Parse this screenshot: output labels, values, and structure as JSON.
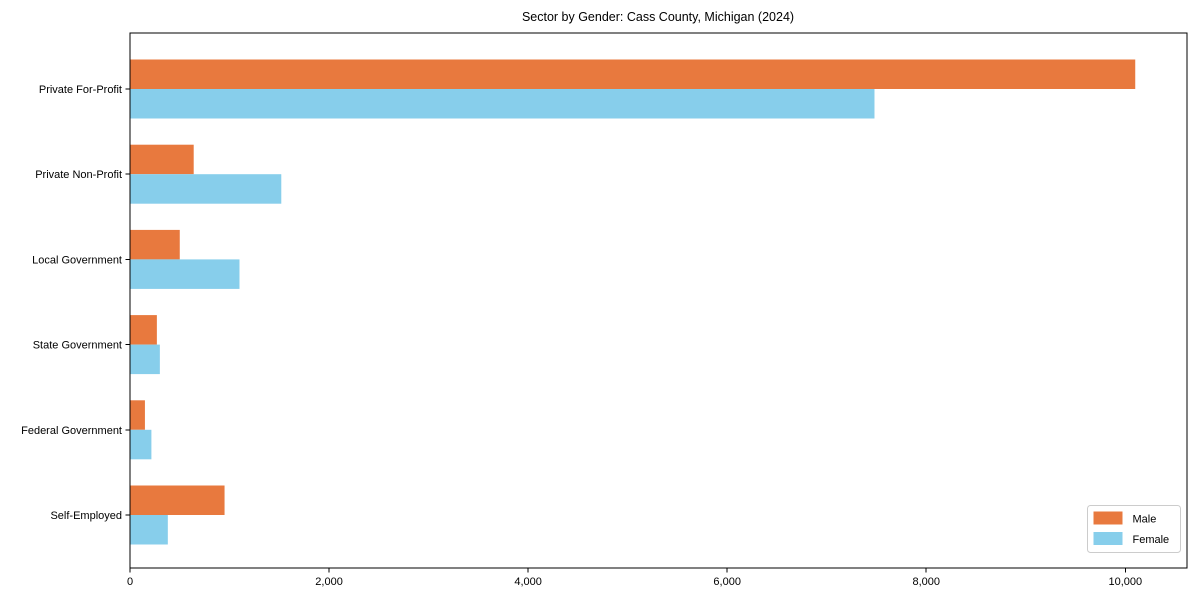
{
  "chart_data": {
    "type": "bar",
    "orientation": "horizontal",
    "title": "Sector by Gender: Cass County, Michigan (2024)",
    "categories": [
      "Private For-Profit",
      "Private Non-Profit",
      "Local Government",
      "State Government",
      "Federal Government",
      "Self-Employed"
    ],
    "series": [
      {
        "name": "Male",
        "color": "#e8793e",
        "values": [
          10100,
          640,
          500,
          270,
          150,
          950
        ]
      },
      {
        "name": "Female",
        "color": "#87ceeb",
        "values": [
          7480,
          1520,
          1100,
          300,
          215,
          380
        ]
      }
    ],
    "xlabel": "",
    "ylabel": "",
    "xlim": [
      0,
      10620
    ],
    "xticks": [
      0,
      2000,
      4000,
      6000,
      8000,
      10000
    ],
    "xtick_labels": [
      "0",
      "2,000",
      "4,000",
      "6,000",
      "8,000",
      "10,000"
    ],
    "grid": false,
    "legend": {
      "position": "lower right",
      "entries": [
        "Male",
        "Female"
      ]
    }
  },
  "colors": {
    "background": "#ffffff",
    "axis": "#000000",
    "legend_border": "#cccccc",
    "legend_background": "#ffffff"
  }
}
